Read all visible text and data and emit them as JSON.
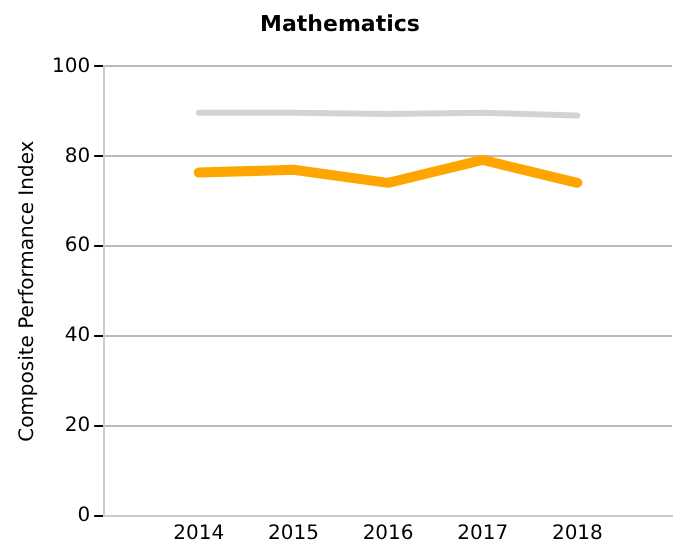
{
  "chart_data": {
    "type": "line",
    "title": "Mathematics",
    "ylabel": "Composite Performance Index",
    "x": [
      2014,
      2015,
      2016,
      2017,
      2018
    ],
    "series": [
      {
        "color": "#d3d3d3",
        "values": [
          89.7,
          89.7,
          89.4,
          89.7,
          89.1
        ]
      },
      {
        "color": "#ffa500",
        "values": [
          76.4,
          77.0,
          74.1,
          79.2,
          74.1
        ]
      }
    ],
    "xlim": [
      2013,
      2019
    ],
    "xticks": [
      2014,
      2015,
      2016,
      2017,
      2018
    ],
    "ylim": [
      0,
      100
    ],
    "yticks": [
      0,
      20,
      40,
      60,
      80,
      100
    ],
    "grid": "y",
    "legend": false,
    "marker": "none",
    "line_style": "solid"
  }
}
